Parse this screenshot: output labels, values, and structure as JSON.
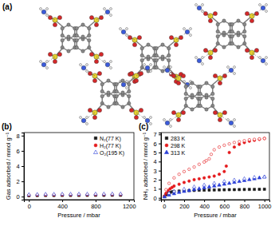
{
  "figure_label": "(a)",
  "chart_data": [
    {
      "type": "scatter",
      "title": "(b)",
      "x_label": "Pressure / mbar",
      "y_label": "Gas adsorbed / mmol g⁻¹",
      "xlim": [
        -60,
        1260
      ],
      "ylim": [
        -0.4,
        8.4
      ],
      "xticks": [
        0,
        400,
        800,
        1200
      ],
      "yticks": [
        0,
        2,
        4,
        6,
        8
      ],
      "legend": "top-right",
      "series": [
        {
          "name": "N₂(77 K)",
          "color": "#1a1a1a",
          "marker": "square",
          "x": [
            0,
            100,
            200,
            300,
            400,
            500,
            600,
            700,
            800,
            900,
            1000,
            1100
          ],
          "values": [
            0.12,
            0.14,
            0.15,
            0.15,
            0.16,
            0.16,
            0.16,
            0.17,
            0.17,
            0.17,
            0.18,
            0.18
          ]
        },
        {
          "name": "H₂(77 K)",
          "color": "#e41a1c",
          "marker": "circle",
          "x": [
            0,
            100,
            200,
            300,
            400,
            500,
            600,
            700,
            800,
            900,
            1000,
            1100
          ],
          "values": [
            0.2,
            0.22,
            0.23,
            0.24,
            0.24,
            0.25,
            0.25,
            0.26,
            0.26,
            0.27,
            0.27,
            0.28
          ]
        },
        {
          "name": "O₂(195 K)",
          "color": "#2b3fd6",
          "marker": "open-triangle",
          "x": [
            0,
            100,
            200,
            300,
            400,
            500,
            600,
            700,
            800,
            900,
            1000,
            1100
          ],
          "values": [
            0.25,
            0.28,
            0.3,
            0.3,
            0.31,
            0.31,
            0.32,
            0.32,
            0.33,
            0.33,
            0.34,
            0.34
          ]
        }
      ]
    },
    {
      "type": "scatter",
      "title": "(c)",
      "x_label": "Pressure / mbar",
      "y_label": "NH₃ adsorbed / mmol g⁻¹",
      "xlim": [
        -30,
        1050
      ],
      "ylim": [
        -0.2,
        7.2
      ],
      "xticks": [
        0,
        200,
        400,
        600,
        800,
        1000
      ],
      "yticks": [
        0,
        1,
        2,
        3,
        4,
        5,
        6,
        7
      ],
      "legend": "top-left",
      "series": [
        {
          "name": "283 K",
          "color": "#1a1a1a",
          "marker": "square",
          "x": [
            5,
            20,
            40,
            60,
            80,
            100,
            150,
            200,
            250,
            300,
            350,
            400,
            450,
            500,
            550,
            600,
            650,
            700,
            750,
            800,
            850,
            900,
            950,
            1000
          ],
          "values": [
            0.15,
            0.35,
            0.5,
            0.6,
            0.66,
            0.7,
            0.75,
            0.78,
            0.8,
            0.82,
            0.84,
            0.85,
            0.86,
            0.87,
            0.88,
            0.89,
            0.9,
            0.9,
            0.91,
            0.92,
            0.93,
            0.93,
            0.94,
            0.95
          ]
        },
        {
          "name": "298 K",
          "color": "#e41a1c",
          "marker": "circle",
          "x": [
            5,
            20,
            40,
            60,
            80,
            100,
            150,
            200,
            250,
            300,
            350,
            400,
            450,
            500,
            550,
            600,
            620,
            650,
            700,
            750,
            800,
            850,
            900,
            950,
            1000
          ],
          "values": [
            0.2,
            0.5,
            0.8,
            1.0,
            1.15,
            1.3,
            1.5,
            1.7,
            1.85,
            2.0,
            2.1,
            2.2,
            2.3,
            2.4,
            2.6,
            2.9,
            3.5,
            5.0,
            5.6,
            5.9,
            6.1,
            6.25,
            6.35,
            6.45,
            6.55
          ]
        },
        {
          "name": "313 K",
          "color": "#2b3fd6",
          "marker": "triangle",
          "x": [
            5,
            50,
            100,
            150,
            200,
            250,
            300,
            350,
            400,
            450,
            500,
            550,
            600,
            650,
            700,
            750,
            800,
            850,
            900,
            950,
            1000
          ],
          "values": [
            0.1,
            0.3,
            0.45,
            0.6,
            0.7,
            0.8,
            0.9,
            1.0,
            1.1,
            1.2,
            1.3,
            1.4,
            1.5,
            1.6,
            1.7,
            1.8,
            1.9,
            2.0,
            2.1,
            2.2,
            2.3
          ]
        },
        {
          "name": null,
          "color": "#e41a1c",
          "marker": "open-circle",
          "x": [
            1000,
            950,
            900,
            850,
            800,
            750,
            700,
            650,
            600,
            550,
            500,
            470,
            450,
            420,
            400,
            350,
            300,
            250,
            200,
            150,
            100,
            50,
            20
          ],
          "values": [
            6.55,
            6.5,
            6.45,
            6.4,
            6.3,
            6.2,
            6.1,
            5.95,
            5.8,
            5.6,
            5.3,
            4.8,
            4.3,
            4.1,
            3.95,
            3.7,
            3.4,
            3.15,
            2.9,
            2.6,
            2.2,
            1.6,
            0.9
          ]
        },
        {
          "name": null,
          "color": "#2b3fd6",
          "marker": "open-triangle",
          "x": [
            1000,
            900,
            800,
            700,
            600,
            500,
            400,
            300,
            200,
            100,
            50
          ],
          "values": [
            2.3,
            2.25,
            2.1,
            1.95,
            1.8,
            1.6,
            1.4,
            1.2,
            0.95,
            0.7,
            0.5
          ]
        }
      ]
    }
  ]
}
